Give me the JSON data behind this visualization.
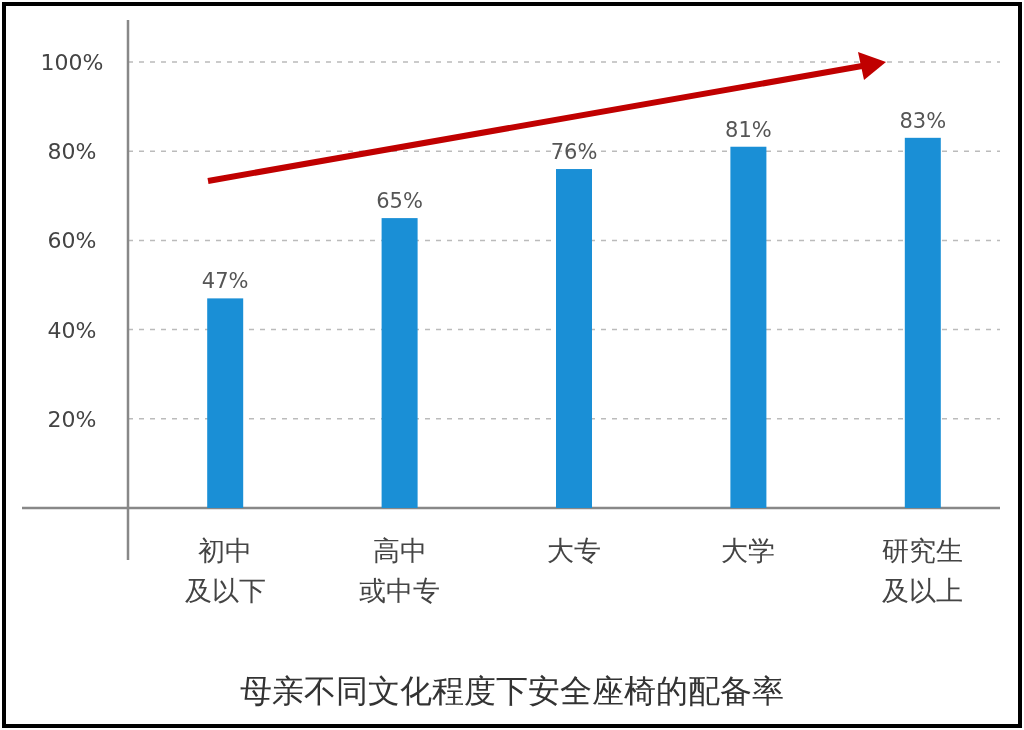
{
  "chart_data": {
    "type": "bar",
    "title": "母亲不同文化程度下安全座椅的配备率",
    "categories": [
      "初中及以下",
      "高中或中专",
      "大专",
      "大学",
      "研究生及以上"
    ],
    "values": [
      47,
      65,
      76,
      81,
      83
    ],
    "value_labels": [
      "47%",
      "65%",
      "76%",
      "81%",
      "83%"
    ],
    "color": "#1a8fd6",
    "ylim": [
      0,
      100
    ],
    "yticks": [
      {
        "value": 0,
        "label": null
      },
      {
        "value": 20,
        "label": "20%"
      },
      {
        "value": 40,
        "label": "40%"
      },
      {
        "value": 60,
        "label": "60%"
      },
      {
        "value": 80,
        "label": "80%"
      },
      {
        "value": 100,
        "label": "100%"
      }
    ],
    "grid": "y"
  }
}
